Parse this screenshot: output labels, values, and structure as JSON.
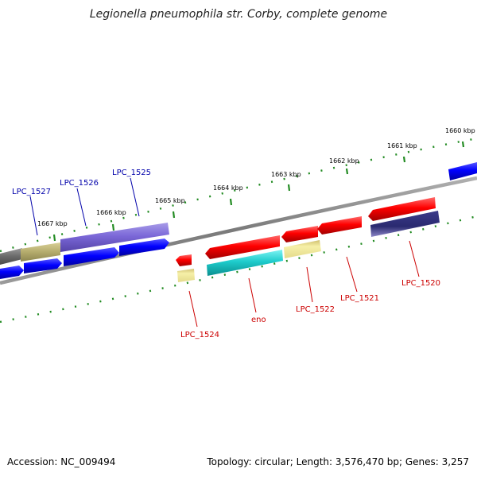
{
  "title": "Legionella pneumophila str. Corby, complete genome",
  "footer": {
    "accession": "Accession: NC_009494",
    "summary": "Topology: circular; Length: 3,576,470 bp; Genes: 3,257"
  },
  "scale_labels": [
    "1660 kbp",
    "1661 kbp",
    "1662 kbp",
    "1663 kbp",
    "1664 kbp",
    "1665 kbp",
    "1666 kbp",
    "1667 kbp"
  ],
  "gene_labels_top": [
    "LPC_1527",
    "LPC_1526",
    "LPC_1525"
  ],
  "gene_labels_bottom": [
    "LPC_1524",
    "eno",
    "LPC_1522",
    "LPC_1521",
    "LPC_1520"
  ],
  "colors": {
    "forward_cds": "#0000ff",
    "reverse_cds": "#ff0000",
    "top_label": "#0000aa",
    "bottom_label": "#cc0000",
    "tick": "#228b22",
    "backbone": "#808080"
  }
}
